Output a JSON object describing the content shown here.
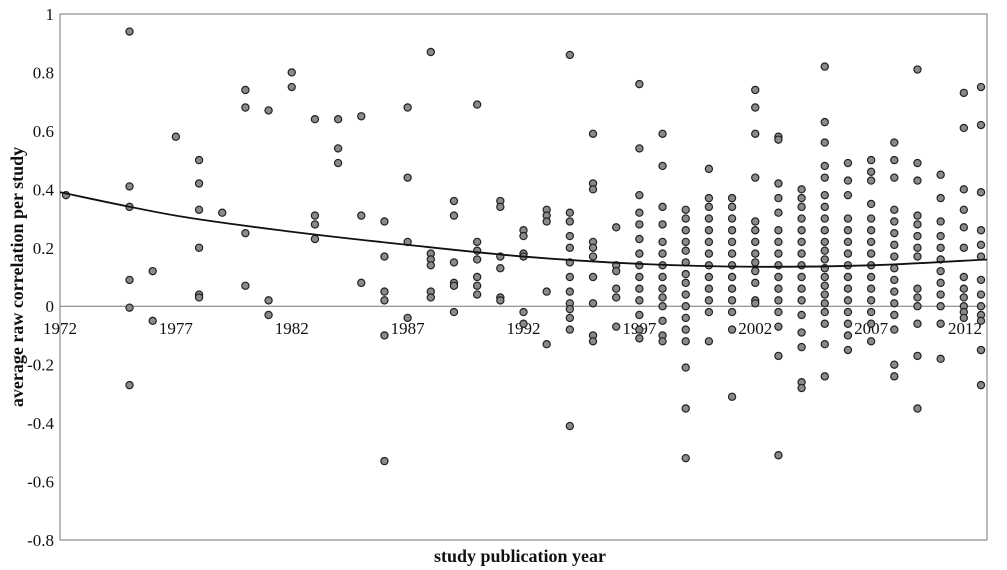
{
  "chart_data": {
    "type": "scatter",
    "title": "",
    "xlabel": "study publication year",
    "ylabel": "average raw correlation  per study",
    "xlim": [
      1972,
      2012
    ],
    "ylim": [
      -0.8,
      1.0
    ],
    "x_ticks": [
      1972,
      1977,
      1982,
      1987,
      1992,
      1997,
      2002,
      2007,
      2012
    ],
    "y_ticks": [
      1,
      0.8,
      0.6,
      0.4,
      0.2,
      0,
      -0.2,
      -0.4,
      -0.6,
      -0.8
    ],
    "y_tick_labels": [
      "1",
      "0.8",
      "0.6",
      "0.4",
      "0.2",
      "0",
      "-0.2",
      "-0.4",
      "-0.6",
      "-0.8"
    ],
    "grid": false,
    "legend": "none",
    "colors": {
      "marker_fill": "#8a8a8a",
      "marker_stroke": "#222222",
      "trend": "#111111",
      "frame": "#777777"
    },
    "trend_line": {
      "type": "polynomial",
      "x": [
        1972,
        1977,
        1982,
        1987,
        1992,
        1997,
        2002,
        2007,
        2012
      ],
      "y": [
        0.39,
        0.31,
        0.255,
        0.21,
        0.17,
        0.145,
        0.135,
        0.14,
        0.16
      ]
    },
    "points": [
      [
        1972,
        0.38
      ],
      [
        1975,
        0.94
      ],
      [
        1975,
        0.41
      ],
      [
        1975,
        0.34
      ],
      [
        1975,
        0.09
      ],
      [
        1975,
        -0.005
      ],
      [
        1975,
        -0.27
      ],
      [
        1976,
        0.12
      ],
      [
        1976,
        -0.05
      ],
      [
        1977,
        0.58
      ],
      [
        1978,
        0.5
      ],
      [
        1978,
        0.42
      ],
      [
        1978,
        0.33
      ],
      [
        1978,
        0.2
      ],
      [
        1978,
        0.04
      ],
      [
        1978,
        0.03
      ],
      [
        1979,
        0.32
      ],
      [
        1980,
        0.74
      ],
      [
        1980,
        0.68
      ],
      [
        1980,
        0.25
      ],
      [
        1980,
        0.07
      ],
      [
        1981,
        0.67
      ],
      [
        1981,
        0.02
      ],
      [
        1981,
        -0.03
      ],
      [
        1982,
        0.8
      ],
      [
        1982,
        0.75
      ],
      [
        1983,
        0.64
      ],
      [
        1983,
        0.31
      ],
      [
        1983,
        0.28
      ],
      [
        1983,
        0.23
      ],
      [
        1984,
        0.64
      ],
      [
        1984,
        0.54
      ],
      [
        1984,
        0.49
      ],
      [
        1985,
        0.65
      ],
      [
        1985,
        0.31
      ],
      [
        1985,
        0.08
      ],
      [
        1986,
        0.29
      ],
      [
        1986,
        0.17
      ],
      [
        1986,
        0.05
      ],
      [
        1986,
        0.02
      ],
      [
        1986,
        -0.1
      ],
      [
        1986,
        -0.53
      ],
      [
        1987,
        0.68
      ],
      [
        1987,
        0.44
      ],
      [
        1987,
        0.22
      ],
      [
        1987,
        -0.04
      ],
      [
        1988,
        0.87
      ],
      [
        1988,
        0.18
      ],
      [
        1988,
        0.16
      ],
      [
        1988,
        0.14
      ],
      [
        1988,
        0.05
      ],
      [
        1988,
        0.03
      ],
      [
        1989,
        0.36
      ],
      [
        1989,
        0.31
      ],
      [
        1989,
        0.15
      ],
      [
        1989,
        0.08
      ],
      [
        1989,
        0.07
      ],
      [
        1989,
        -0.02
      ],
      [
        1990,
        0.69
      ],
      [
        1990,
        0.22
      ],
      [
        1990,
        0.19
      ],
      [
        1990,
        0.16
      ],
      [
        1990,
        0.1
      ],
      [
        1990,
        0.07
      ],
      [
        1990,
        0.04
      ],
      [
        1991,
        0.36
      ],
      [
        1991,
        0.34
      ],
      [
        1991,
        0.17
      ],
      [
        1991,
        0.13
      ],
      [
        1991,
        0.03
      ],
      [
        1991,
        0.02
      ],
      [
        1992,
        0.26
      ],
      [
        1992,
        0.24
      ],
      [
        1992,
        0.18
      ],
      [
        1992,
        0.17
      ],
      [
        1992,
        -0.02
      ],
      [
        1992,
        -0.06
      ],
      [
        1993,
        0.33
      ],
      [
        1993,
        0.31
      ],
      [
        1993,
        0.29
      ],
      [
        1993,
        0.05
      ],
      [
        1993,
        -0.13
      ],
      [
        1994,
        0.86
      ],
      [
        1994,
        0.32
      ],
      [
        1994,
        0.29
      ],
      [
        1994,
        0.24
      ],
      [
        1994,
        0.2
      ],
      [
        1994,
        0.15
      ],
      [
        1994,
        0.1
      ],
      [
        1994,
        0.05
      ],
      [
        1994,
        0.01
      ],
      [
        1994,
        -0.01
      ],
      [
        1994,
        -0.04
      ],
      [
        1994,
        -0.08
      ],
      [
        1994,
        -0.41
      ],
      [
        1995,
        0.59
      ],
      [
        1995,
        0.42
      ],
      [
        1995,
        0.4
      ],
      [
        1995,
        0.22
      ],
      [
        1995,
        0.2
      ],
      [
        1995,
        0.17
      ],
      [
        1995,
        0.1
      ],
      [
        1995,
        0.01
      ],
      [
        1995,
        -0.1
      ],
      [
        1995,
        -0.12
      ],
      [
        1996,
        0.27
      ],
      [
        1996,
        0.14
      ],
      [
        1996,
        0.12
      ],
      [
        1996,
        0.06
      ],
      [
        1996,
        0.03
      ],
      [
        1996,
        -0.07
      ],
      [
        1997,
        0.76
      ],
      [
        1997,
        0.54
      ],
      [
        1997,
        0.38
      ],
      [
        1997,
        0.32
      ],
      [
        1997,
        0.28
      ],
      [
        1997,
        0.23
      ],
      [
        1997,
        0.18
      ],
      [
        1997,
        0.14
      ],
      [
        1997,
        0.1
      ],
      [
        1997,
        0.06
      ],
      [
        1997,
        0.02
      ],
      [
        1997,
        -0.03
      ],
      [
        1997,
        -0.08
      ],
      [
        1997,
        -0.11
      ],
      [
        1998,
        0.59
      ],
      [
        1998,
        0.48
      ],
      [
        1998,
        0.34
      ],
      [
        1998,
        0.28
      ],
      [
        1998,
        0.22
      ],
      [
        1998,
        0.18
      ],
      [
        1998,
        0.14
      ],
      [
        1998,
        0.1
      ],
      [
        1998,
        0.06
      ],
      [
        1998,
        0.03
      ],
      [
        1998,
        0.0
      ],
      [
        1998,
        -0.05
      ],
      [
        1998,
        -0.1
      ],
      [
        1998,
        -0.12
      ],
      [
        1999,
        0.33
      ],
      [
        1999,
        0.3
      ],
      [
        1999,
        0.26
      ],
      [
        1999,
        0.22
      ],
      [
        1999,
        0.19
      ],
      [
        1999,
        0.15
      ],
      [
        1999,
        0.11
      ],
      [
        1999,
        0.08
      ],
      [
        1999,
        0.04
      ],
      [
        1999,
        0.0
      ],
      [
        1999,
        -0.04
      ],
      [
        1999,
        -0.08
      ],
      [
        1999,
        -0.12
      ],
      [
        1999,
        -0.21
      ],
      [
        1999,
        -0.35
      ],
      [
        1999,
        -0.52
      ],
      [
        2000,
        0.47
      ],
      [
        2000,
        0.37
      ],
      [
        2000,
        0.34
      ],
      [
        2000,
        0.3
      ],
      [
        2000,
        0.26
      ],
      [
        2000,
        0.22
      ],
      [
        2000,
        0.18
      ],
      [
        2000,
        0.14
      ],
      [
        2000,
        0.1
      ],
      [
        2000,
        0.06
      ],
      [
        2000,
        0.02
      ],
      [
        2000,
        -0.02
      ],
      [
        2000,
        -0.12
      ],
      [
        2001,
        0.37
      ],
      [
        2001,
        0.34
      ],
      [
        2001,
        0.3
      ],
      [
        2001,
        0.26
      ],
      [
        2001,
        0.22
      ],
      [
        2001,
        0.18
      ],
      [
        2001,
        0.14
      ],
      [
        2001,
        0.1
      ],
      [
        2001,
        0.06
      ],
      [
        2001,
        0.02
      ],
      [
        2001,
        -0.02
      ],
      [
        2001,
        -0.08
      ],
      [
        2001,
        -0.31
      ],
      [
        2002,
        0.74
      ],
      [
        2002,
        0.68
      ],
      [
        2002,
        0.59
      ],
      [
        2002,
        0.44
      ],
      [
        2002,
        0.29
      ],
      [
        2002,
        0.26
      ],
      [
        2002,
        0.22
      ],
      [
        2002,
        0.18
      ],
      [
        2002,
        0.15
      ],
      [
        2002,
        0.12
      ],
      [
        2002,
        0.08
      ],
      [
        2002,
        0.02
      ],
      [
        2002,
        0.01
      ],
      [
        2003,
        0.58
      ],
      [
        2003,
        0.57
      ],
      [
        2003,
        0.42
      ],
      [
        2003,
        0.37
      ],
      [
        2003,
        0.32
      ],
      [
        2003,
        0.26
      ],
      [
        2003,
        0.22
      ],
      [
        2003,
        0.18
      ],
      [
        2003,
        0.14
      ],
      [
        2003,
        0.1
      ],
      [
        2003,
        0.06
      ],
      [
        2003,
        0.02
      ],
      [
        2003,
        -0.02
      ],
      [
        2003,
        -0.07
      ],
      [
        2003,
        -0.17
      ],
      [
        2003,
        -0.51
      ],
      [
        2004,
        0.4
      ],
      [
        2004,
        0.37
      ],
      [
        2004,
        0.34
      ],
      [
        2004,
        0.3
      ],
      [
        2004,
        0.26
      ],
      [
        2004,
        0.22
      ],
      [
        2004,
        0.18
      ],
      [
        2004,
        0.14
      ],
      [
        2004,
        0.1
      ],
      [
        2004,
        0.06
      ],
      [
        2004,
        0.02
      ],
      [
        2004,
        -0.03
      ],
      [
        2004,
        -0.09
      ],
      [
        2004,
        -0.14
      ],
      [
        2004,
        -0.26
      ],
      [
        2004,
        -0.28
      ],
      [
        2005,
        0.82
      ],
      [
        2005,
        0.63
      ],
      [
        2005,
        0.56
      ],
      [
        2005,
        0.48
      ],
      [
        2005,
        0.44
      ],
      [
        2005,
        0.38
      ],
      [
        2005,
        0.34
      ],
      [
        2005,
        0.3
      ],
      [
        2005,
        0.26
      ],
      [
        2005,
        0.22
      ],
      [
        2005,
        0.19
      ],
      [
        2005,
        0.16
      ],
      [
        2005,
        0.13
      ],
      [
        2005,
        0.1
      ],
      [
        2005,
        0.07
      ],
      [
        2005,
        0.04
      ],
      [
        2005,
        0.01
      ],
      [
        2005,
        -0.02
      ],
      [
        2005,
        -0.06
      ],
      [
        2005,
        -0.13
      ],
      [
        2005,
        -0.24
      ],
      [
        2006,
        0.49
      ],
      [
        2006,
        0.43
      ],
      [
        2006,
        0.38
      ],
      [
        2006,
        0.3
      ],
      [
        2006,
        0.26
      ],
      [
        2006,
        0.22
      ],
      [
        2006,
        0.18
      ],
      [
        2006,
        0.14
      ],
      [
        2006,
        0.1
      ],
      [
        2006,
        0.06
      ],
      [
        2006,
        0.02
      ],
      [
        2006,
        -0.02
      ],
      [
        2006,
        -0.06
      ],
      [
        2006,
        -0.1
      ],
      [
        2006,
        -0.15
      ],
      [
        2007,
        0.5
      ],
      [
        2007,
        0.46
      ],
      [
        2007,
        0.43
      ],
      [
        2007,
        0.35
      ],
      [
        2007,
        0.3
      ],
      [
        2007,
        0.26
      ],
      [
        2007,
        0.22
      ],
      [
        2007,
        0.18
      ],
      [
        2007,
        0.14
      ],
      [
        2007,
        0.1
      ],
      [
        2007,
        0.06
      ],
      [
        2007,
        0.02
      ],
      [
        2007,
        -0.02
      ],
      [
        2007,
        -0.06
      ],
      [
        2007,
        -0.12
      ],
      [
        2008,
        0.56
      ],
      [
        2008,
        0.5
      ],
      [
        2008,
        0.44
      ],
      [
        2008,
        0.33
      ],
      [
        2008,
        0.29
      ],
      [
        2008,
        0.25
      ],
      [
        2008,
        0.21
      ],
      [
        2008,
        0.17
      ],
      [
        2008,
        0.13
      ],
      [
        2008,
        0.09
      ],
      [
        2008,
        0.05
      ],
      [
        2008,
        0.01
      ],
      [
        2008,
        -0.03
      ],
      [
        2008,
        -0.08
      ],
      [
        2008,
        -0.2
      ],
      [
        2008,
        -0.24
      ],
      [
        2009,
        0.81
      ],
      [
        2009,
        0.49
      ],
      [
        2009,
        0.43
      ],
      [
        2009,
        0.31
      ],
      [
        2009,
        0.28
      ],
      [
        2009,
        0.24
      ],
      [
        2009,
        0.2
      ],
      [
        2009,
        0.17
      ],
      [
        2009,
        0.06
      ],
      [
        2009,
        0.03
      ],
      [
        2009,
        0.0
      ],
      [
        2009,
        -0.06
      ],
      [
        2009,
        -0.17
      ],
      [
        2009,
        -0.35
      ],
      [
        2010,
        0.45
      ],
      [
        2010,
        0.37
      ],
      [
        2010,
        0.29
      ],
      [
        2010,
        0.24
      ],
      [
        2010,
        0.2
      ],
      [
        2010,
        0.16
      ],
      [
        2010,
        0.12
      ],
      [
        2010,
        0.08
      ],
      [
        2010,
        0.04
      ],
      [
        2010,
        0.0
      ],
      [
        2010,
        -0.06
      ],
      [
        2010,
        -0.18
      ],
      [
        2011,
        0.73
      ],
      [
        2011,
        0.61
      ],
      [
        2011,
        0.4
      ],
      [
        2011,
        0.33
      ],
      [
        2011,
        0.27
      ],
      [
        2011,
        0.2
      ],
      [
        2011,
        0.1
      ],
      [
        2011,
        0.06
      ],
      [
        2011,
        0.03
      ],
      [
        2011,
        0.0
      ],
      [
        2011,
        -0.02
      ],
      [
        2011,
        -0.04
      ],
      [
        2012,
        0.75
      ],
      [
        2012,
        0.62
      ],
      [
        2012,
        0.39
      ],
      [
        2012,
        0.26
      ],
      [
        2012,
        0.21
      ],
      [
        2012,
        0.17
      ],
      [
        2012,
        0.09
      ],
      [
        2012,
        0.04
      ],
      [
        2012,
        0.0
      ],
      [
        2012,
        -0.03
      ],
      [
        2012,
        -0.15
      ],
      [
        2013,
        -0.05
      ],
      [
        2013,
        -0.15
      ],
      [
        2013,
        -0.27
      ]
    ]
  }
}
